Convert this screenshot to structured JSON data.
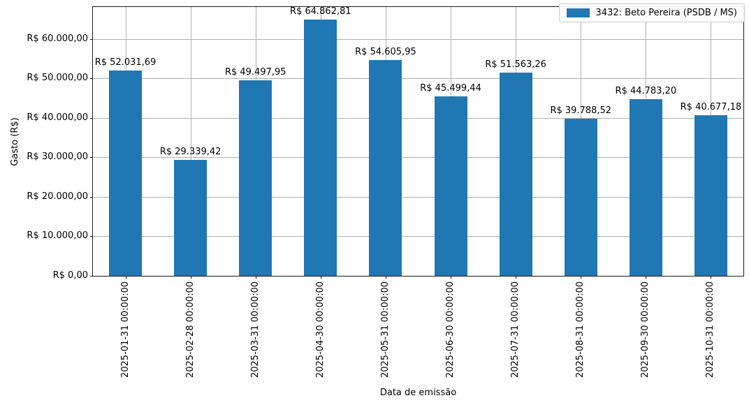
{
  "chart_data": {
    "type": "bar",
    "title": "",
    "xlabel": "Data de emissão",
    "ylabel": "Gasto (R$)",
    "categories": [
      "2025-01-31 00:00:00",
      "2025-02-28 00:00:00",
      "2025-03-31 00:00:00",
      "2025-04-30 00:00:00",
      "2025-05-31 00:00:00",
      "2025-06-30 00:00:00",
      "2025-07-31 00:00:00",
      "2025-08-31 00:00:00",
      "2025-09-30 00:00:00",
      "2025-10-31 00:00:00"
    ],
    "series": [
      {
        "name": "3432: Beto Pereira (PSDB / MS)",
        "values": [
          52031.69,
          29339.42,
          49497.95,
          64862.81,
          54605.95,
          45499.44,
          51563.26,
          39788.52,
          44783.2,
          40677.18
        ],
        "value_labels": [
          "R$ 52.031,69",
          "R$ 29.339,42",
          "R$ 49.497,95",
          "R$ 64.862,81",
          "R$ 54.605,95",
          "R$ 45.499,44",
          "R$ 51.563,26",
          "R$ 39.788,52",
          "R$ 44.783,20",
          "R$ 40.677,18"
        ],
        "color": "#1f77b4"
      }
    ],
    "yticks": {
      "values": [
        0,
        10000,
        20000,
        30000,
        40000,
        50000,
        60000
      ],
      "labels": [
        "R$ 0,00",
        "R$ 10.000,00",
        "R$ 20.000,00",
        "R$ 30.000,00",
        "R$ 40.000,00",
        "R$ 50.000,00",
        "R$ 60.000,00"
      ]
    },
    "ylim": [
      0,
      68106
    ],
    "grid": true,
    "grid_color": "#b0b0b0",
    "spine_color": "#1a1a1a",
    "legend_position": "upper right"
  }
}
